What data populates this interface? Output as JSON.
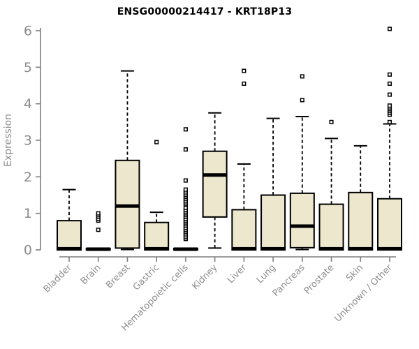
{
  "header": {
    "title": "ENSG00000214417 - KRT18P13"
  },
  "chart_data": {
    "type": "boxplot",
    "title": "ENSG00000214417 - KRT18P13",
    "xlabel": "",
    "ylabel": "Expression",
    "ylim": [
      0,
      6
    ],
    "yticks": [
      0,
      1,
      2,
      3,
      4,
      5,
      6
    ],
    "grid": false,
    "legend": false,
    "categories": [
      "Bladder",
      "Brain",
      "Breast",
      "Gastric",
      "Hematopoietic cells",
      "Kidney",
      "Liver",
      "Lung",
      "Pancreas",
      "Prostate",
      "Skin",
      "Unknown / Other"
    ],
    "boxes": [
      {
        "category": "Bladder",
        "low": 0,
        "q1": 0,
        "median": 0.03,
        "q3": 0.8,
        "high": 1.65,
        "outliers": []
      },
      {
        "category": "Brain",
        "low": 0,
        "q1": 0,
        "median": 0.02,
        "q3": 0.04,
        "high": 0.04,
        "outliers": [
          0.55,
          0.8,
          0.85,
          0.9,
          0.95,
          1.0
        ]
      },
      {
        "category": "Breast",
        "low": 0.01,
        "q1": 0.05,
        "median": 1.2,
        "q3": 2.45,
        "high": 4.9,
        "outliers": []
      },
      {
        "category": "Gastric",
        "low": 0,
        "q1": 0,
        "median": 0.03,
        "q3": 0.75,
        "high": 1.03,
        "outliers": [
          2.95
        ]
      },
      {
        "category": "Hematopoietic cells",
        "low": 0,
        "q1": 0,
        "median": 0.02,
        "q3": 0.04,
        "high": 0.04,
        "outliers": [
          0.3,
          0.35,
          0.4,
          0.45,
          0.5,
          0.55,
          0.6,
          0.65,
          0.7,
          0.75,
          0.8,
          0.85,
          0.9,
          0.95,
          1.0,
          1.05,
          1.1,
          1.15,
          1.25,
          1.3,
          1.35,
          1.4,
          1.45,
          1.5,
          1.55,
          1.6,
          1.65,
          1.9,
          2.75,
          3.3
        ]
      },
      {
        "category": "Kidney",
        "low": 0.05,
        "q1": 0.9,
        "median": 2.05,
        "q3": 2.7,
        "high": 3.75,
        "outliers": []
      },
      {
        "category": "Liver",
        "low": 0,
        "q1": 0,
        "median": 0.03,
        "q3": 1.1,
        "high": 2.35,
        "outliers": [
          4.55,
          4.9
        ]
      },
      {
        "category": "Lung",
        "low": 0,
        "q1": 0,
        "median": 0.03,
        "q3": 1.5,
        "high": 3.6,
        "outliers": []
      },
      {
        "category": "Pancreas",
        "low": 0.01,
        "q1": 0.06,
        "median": 0.65,
        "q3": 1.55,
        "high": 3.65,
        "outliers": [
          4.1,
          4.75
        ]
      },
      {
        "category": "Prostate",
        "low": 0,
        "q1": 0,
        "median": 0.03,
        "q3": 1.25,
        "high": 3.05,
        "outliers": [
          3.5
        ]
      },
      {
        "category": "Skin",
        "low": 0,
        "q1": 0,
        "median": 0.03,
        "q3": 1.57,
        "high": 2.85,
        "outliers": []
      },
      {
        "category": "Unknown / Other",
        "low": 0,
        "q1": 0,
        "median": 0.03,
        "q3": 1.4,
        "high": 3.45,
        "outliers": [
          3.5,
          3.7,
          3.75,
          3.8,
          3.85,
          3.9,
          3.95,
          4.25,
          4.55,
          4.8,
          6.05
        ]
      }
    ],
    "colors": {
      "box_fill": "#EDE7CE",
      "box_stroke": "#000000",
      "whisker": "#000000",
      "axis": "#7F7F7F",
      "tick_label": "#8C8C8C",
      "title": "#000000",
      "background": "#FFFFFF"
    }
  }
}
